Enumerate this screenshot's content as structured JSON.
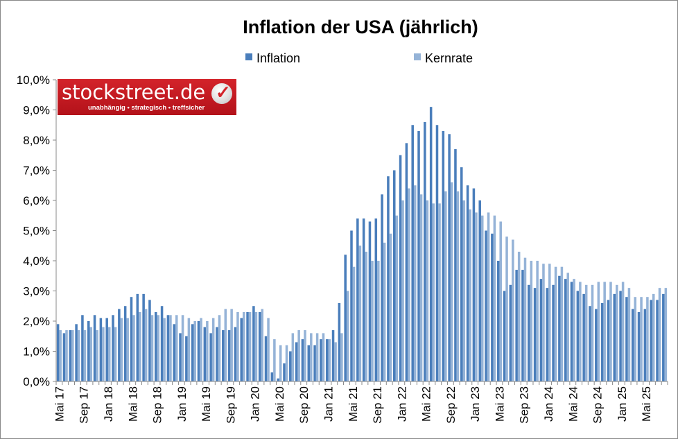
{
  "chart_data": {
    "type": "bar",
    "title": "Inflation der USA (jährlich)",
    "legend_position": "top",
    "grid": false,
    "ylim": [
      0,
      10
    ],
    "y_ticks": [
      "0,0%",
      "1,0%",
      "2,0%",
      "3,0%",
      "4,0%",
      "5,0%",
      "6,0%",
      "7,0%",
      "8,0%",
      "9,0%",
      "10,0%"
    ],
    "x_tick_labels": [
      "Mai 17",
      "Sep 17",
      "Jan 18",
      "Mai 18",
      "Sep 18",
      "Jan 19",
      "Mai 19",
      "Sep 19",
      "Jan 20",
      "Mai 20",
      "Sep 20",
      "Jan 21",
      "Mai 21",
      "Sep 21",
      "Jan 22",
      "Mai 22",
      "Sep 22",
      "Jan 23",
      "Mai 23",
      "Sep 23",
      "Jan 24",
      "Mai 24",
      "Sep 24",
      "Jan 25",
      "Mai 25"
    ],
    "series": [
      {
        "name": "Inflation",
        "color": "#4a7ebb",
        "values": [
          1.9,
          1.6,
          1.7,
          1.9,
          2.2,
          2.0,
          2.2,
          2.1,
          2.1,
          2.2,
          2.4,
          2.5,
          2.8,
          2.9,
          2.9,
          2.7,
          2.3,
          2.5,
          2.2,
          1.9,
          1.6,
          1.5,
          1.9,
          2.0,
          1.8,
          1.6,
          1.8,
          1.7,
          1.7,
          1.8,
          2.1,
          2.3,
          2.5,
          2.3,
          1.5,
          0.3,
          0.1,
          0.6,
          1.0,
          1.3,
          1.4,
          1.2,
          1.2,
          1.4,
          1.4,
          1.7,
          2.6,
          4.2,
          5.0,
          5.4,
          5.4,
          5.3,
          5.4,
          6.2,
          6.8,
          7.0,
          7.5,
          7.9,
          8.5,
          8.3,
          8.6,
          9.1,
          8.5,
          8.3,
          8.2,
          7.7,
          7.1,
          6.5,
          6.4,
          6.0,
          5.0,
          4.9,
          4.0,
          3.0,
          3.2,
          3.7,
          3.7,
          3.2,
          3.1,
          3.4,
          3.1,
          3.2,
          3.5,
          3.4,
          3.3,
          3.0,
          2.9,
          2.5,
          2.4,
          2.6,
          2.7,
          2.9,
          3.0,
          2.8,
          2.4,
          2.3,
          2.4,
          2.7,
          2.7,
          2.9
        ]
      },
      {
        "name": "Kernrate",
        "color": "#95b3d7",
        "values": [
          1.7,
          1.7,
          1.7,
          1.7,
          1.7,
          1.8,
          1.7,
          1.8,
          1.8,
          1.8,
          2.1,
          2.1,
          2.2,
          2.3,
          2.4,
          2.2,
          2.2,
          2.1,
          2.2,
          2.2,
          2.2,
          2.1,
          2.0,
          2.1,
          2.0,
          2.1,
          2.2,
          2.4,
          2.4,
          2.3,
          2.3,
          2.3,
          2.3,
          2.4,
          2.1,
          1.4,
          1.2,
          1.2,
          1.6,
          1.7,
          1.7,
          1.6,
          1.6,
          1.6,
          1.4,
          1.3,
          1.6,
          3.0,
          3.8,
          4.5,
          4.3,
          4.0,
          4.0,
          4.6,
          4.9,
          5.5,
          6.0,
          6.4,
          6.5,
          6.2,
          6.0,
          5.9,
          5.9,
          6.3,
          6.6,
          6.3,
          6.0,
          5.7,
          5.6,
          5.5,
          5.6,
          5.5,
          5.3,
          4.8,
          4.7,
          4.3,
          4.1,
          4.0,
          4.0,
          3.9,
          3.9,
          3.8,
          3.8,
          3.6,
          3.4,
          3.3,
          3.2,
          3.2,
          3.3,
          3.3,
          3.3,
          3.2,
          3.3,
          3.1,
          2.8,
          2.8,
          2.8,
          2.9,
          3.1,
          3.1
        ]
      }
    ]
  },
  "logo": {
    "name": "stockstreet.de",
    "tagline": "unabhängig • strategisch • treffsicher"
  }
}
